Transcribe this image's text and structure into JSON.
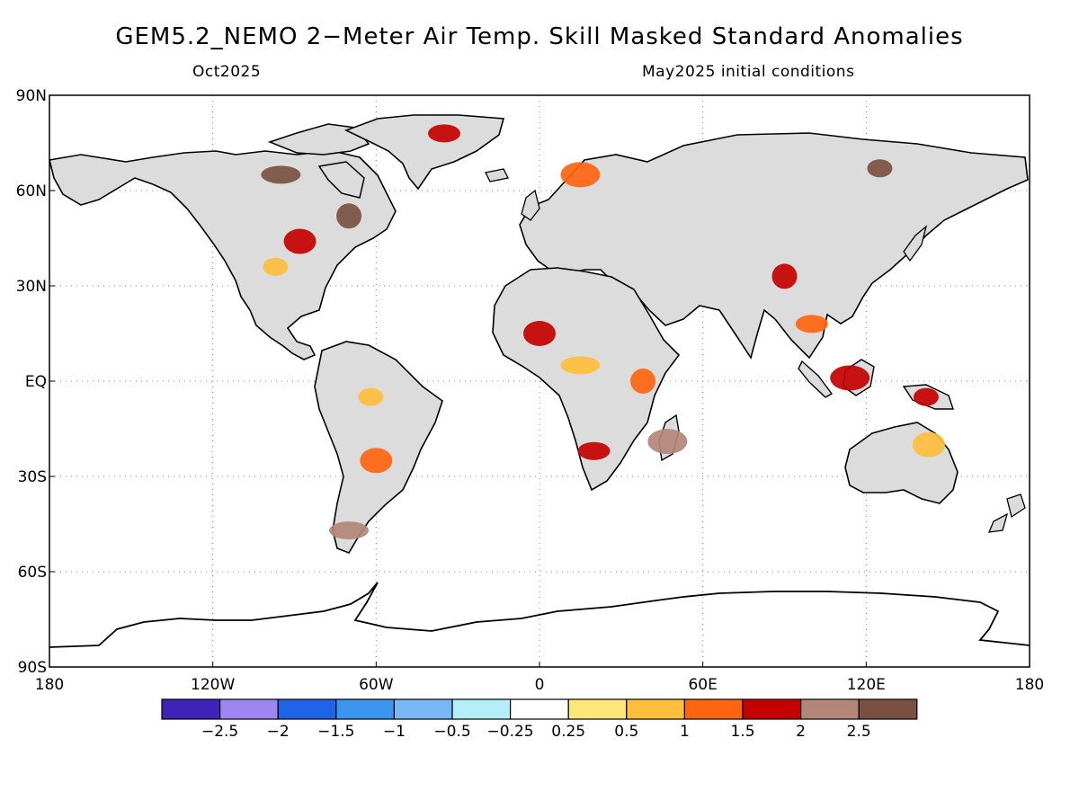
{
  "title": "GEM5.2_NEMO 2−Meter Air Temp. Skill Masked Standard Anomalies",
  "subtitle_left": "Oct2025",
  "subtitle_right": "May2025 initial conditions",
  "axes": {
    "lat_ticks": [
      "90N",
      "60N",
      "30N",
      "EQ",
      "30S",
      "60S",
      "90S"
    ],
    "lon_ticks": [
      "180",
      "120W",
      "60W",
      "0",
      "60E",
      "120E",
      "180"
    ],
    "grid": "dotted"
  },
  "colors": {
    "land_no_skill": "#dcdcdc",
    "ocean": "#ffffff",
    "coastline": "#000000"
  },
  "colorbar": {
    "colors": [
      "#3f22b8",
      "#9e86f2",
      "#1f64e6",
      "#3c96f0",
      "#78b8f4",
      "#b4eef8",
      "#ffffff",
      "#ffe678",
      "#ffbe3c",
      "#ff6410",
      "#c40000",
      "#b3867a",
      "#7a5040"
    ],
    "labels": [
      "−2.5",
      "−2",
      "−1.5",
      "−1",
      "−0.5",
      "−0.25",
      "0.25",
      "0.5",
      "1",
      "1.5",
      "2",
      "2.5"
    ]
  },
  "anomaly_regions": [
    {
      "name": "central-us",
      "lon": -97,
      "lat": 36,
      "color": "#ffbe3c"
    },
    {
      "name": "great-lakes",
      "lon": -88,
      "lat": 44,
      "color": "#c40000"
    },
    {
      "name": "northern-canada",
      "lon": -95,
      "lat": 65,
      "color": "#7a5040"
    },
    {
      "name": "eastern-canada",
      "lon": -70,
      "lat": 52,
      "color": "#7a5040"
    },
    {
      "name": "greenland-east",
      "lon": -35,
      "lat": 78,
      "color": "#c40000"
    },
    {
      "name": "scandinavia",
      "lon": 15,
      "lat": 65,
      "color": "#ff6410"
    },
    {
      "name": "eastern-siberia",
      "lon": 125,
      "lat": 67,
      "color": "#7a5040"
    },
    {
      "name": "west-africa-sahel",
      "lon": 0,
      "lat": 15,
      "color": "#c40000"
    },
    {
      "name": "central-africa",
      "lon": 15,
      "lat": 5,
      "color": "#ffbe3c"
    },
    {
      "name": "east-africa",
      "lon": 38,
      "lat": 0,
      "color": "#ff6410"
    },
    {
      "name": "southern-africa",
      "lon": 20,
      "lat": -22,
      "color": "#c40000"
    },
    {
      "name": "madagascar",
      "lon": 47,
      "lat": -19,
      "color": "#b3867a"
    },
    {
      "name": "amazon",
      "lon": -62,
      "lat": -5,
      "color": "#ffbe3c"
    },
    {
      "name": "south-america-central",
      "lon": -60,
      "lat": -25,
      "color": "#ff6410"
    },
    {
      "name": "patagonia",
      "lon": -70,
      "lat": -47,
      "color": "#b3867a"
    },
    {
      "name": "tibet",
      "lon": 90,
      "lat": 33,
      "color": "#c40000"
    },
    {
      "name": "southeast-asia",
      "lon": 100,
      "lat": 18,
      "color": "#ff6410"
    },
    {
      "name": "borneo",
      "lon": 114,
      "lat": 1,
      "color": "#c40000"
    },
    {
      "name": "new-guinea",
      "lon": 142,
      "lat": -5,
      "color": "#c40000"
    },
    {
      "name": "northeast-australia",
      "lon": 143,
      "lat": -20,
      "color": "#ffbe3c"
    }
  ]
}
